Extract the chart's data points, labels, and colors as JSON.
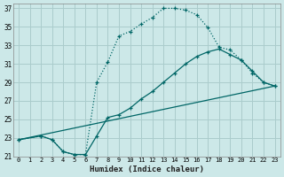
{
  "xlabel": "Humidex (Indice chaleur)",
  "bg_color": "#cce8e8",
  "grid_color": "#aacccc",
  "line_color": "#006666",
  "xlim": [
    -0.5,
    23.5
  ],
  "ylim": [
    21,
    37.5
  ],
  "xticks": [
    0,
    1,
    2,
    3,
    4,
    5,
    6,
    7,
    8,
    9,
    10,
    11,
    12,
    13,
    14,
    15,
    16,
    17,
    18,
    19,
    20,
    21,
    22,
    23
  ],
  "yticks": [
    21,
    23,
    25,
    27,
    29,
    31,
    33,
    35,
    37
  ],
  "curve1_x": [
    0,
    2,
    3,
    4,
    5,
    6,
    7,
    8,
    9,
    10,
    11,
    12,
    13,
    14,
    15,
    16,
    17,
    18,
    19,
    20,
    21,
    22,
    23
  ],
  "curve1_y": [
    22.8,
    23.2,
    22.8,
    21.5,
    21.2,
    21.2,
    29.0,
    31.2,
    34.0,
    34.5,
    35.3,
    36.0,
    37.0,
    37.0,
    36.8,
    36.3,
    34.9,
    32.8,
    32.5,
    31.4,
    30.0,
    29.0,
    28.6
  ],
  "curve2_x": [
    0,
    2,
    3,
    4,
    5,
    6,
    7,
    8,
    9,
    10,
    11,
    12,
    13,
    14,
    15,
    16,
    17,
    18,
    19,
    20,
    21,
    22,
    23
  ],
  "curve2_y": [
    22.8,
    23.2,
    22.8,
    21.5,
    21.2,
    21.2,
    23.2,
    25.2,
    25.5,
    26.2,
    27.2,
    28.0,
    29.0,
    30.0,
    31.0,
    31.8,
    32.3,
    32.6,
    32.0,
    31.4,
    30.2,
    29.0,
    28.6
  ],
  "curve3_x": [
    0,
    23
  ],
  "curve3_y": [
    22.8,
    28.6
  ],
  "marker_x1": [
    0,
    2,
    3,
    4,
    5,
    6,
    7,
    8,
    9,
    10,
    11,
    12,
    13,
    14,
    15,
    16,
    17,
    18,
    19,
    20,
    21,
    22,
    23
  ],
  "marker_y1": [
    22.8,
    23.2,
    22.8,
    21.5,
    21.2,
    21.2,
    29.0,
    31.2,
    34.0,
    34.5,
    35.3,
    36.0,
    37.0,
    37.0,
    36.8,
    36.3,
    34.9,
    32.8,
    32.5,
    31.4,
    30.0,
    29.0,
    28.6
  ],
  "marker_x2": [
    0,
    2,
    3,
    4,
    5,
    6,
    7,
    8,
    9,
    10,
    11,
    12,
    13,
    14,
    15,
    16,
    17,
    18,
    19,
    20,
    21,
    22,
    23
  ],
  "marker_y2": [
    22.8,
    23.2,
    22.8,
    21.5,
    21.2,
    21.2,
    23.2,
    25.2,
    25.5,
    26.2,
    27.2,
    28.0,
    29.0,
    30.0,
    31.0,
    31.8,
    32.3,
    32.6,
    32.0,
    31.4,
    30.2,
    29.0,
    28.6
  ]
}
